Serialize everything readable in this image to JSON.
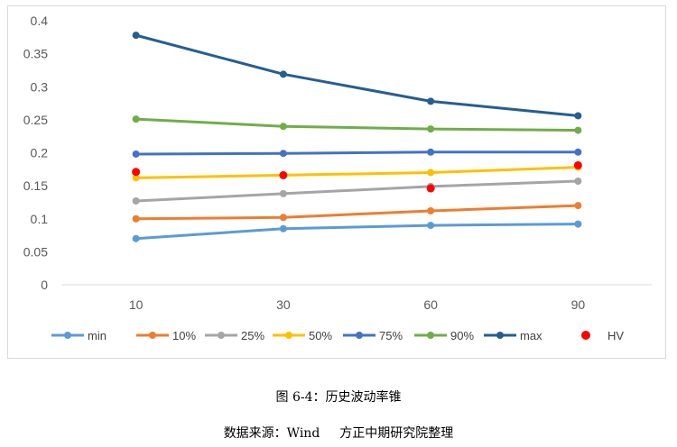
{
  "chart_data": {
    "type": "line",
    "categories": [
      "10",
      "30",
      "60",
      "90"
    ],
    "ylim": [
      0,
      0.4
    ],
    "yticks": [
      "0",
      "0.05",
      "0.1",
      "0.15",
      "0.2",
      "0.25",
      "0.3",
      "0.35",
      "0.4"
    ],
    "grid": false,
    "legend_position": "bottom",
    "series": [
      {
        "name": "min",
        "color": "#5b9bd5",
        "values": [
          0.07,
          0.085,
          0.09,
          0.092
        ]
      },
      {
        "name": "10%",
        "color": "#ed7d31",
        "values": [
          0.1,
          0.102,
          0.112,
          0.12
        ]
      },
      {
        "name": "25%",
        "color": "#a5a5a5",
        "values": [
          0.127,
          0.138,
          0.149,
          0.157
        ]
      },
      {
        "name": "50%",
        "color": "#ffc000",
        "values": [
          0.162,
          0.166,
          0.17,
          0.178
        ]
      },
      {
        "name": "75%",
        "color": "#4472c4",
        "values": [
          0.198,
          0.199,
          0.201,
          0.201
        ]
      },
      {
        "name": "90%",
        "color": "#70ad47",
        "values": [
          0.251,
          0.24,
          0.236,
          0.234
        ]
      },
      {
        "name": "max",
        "color": "#255e91",
        "values": [
          0.378,
          0.319,
          0.278,
          0.256
        ]
      },
      {
        "name": "HV",
        "color": "#ff0000",
        "marker_only": true,
        "values": [
          0.171,
          0.166,
          0.146,
          0.181
        ]
      }
    ]
  },
  "caption": {
    "figure_title": "图 6-4：历史波动率锥",
    "source_label": "数据来源：Wind",
    "source_org": "方正中期研究院整理"
  }
}
